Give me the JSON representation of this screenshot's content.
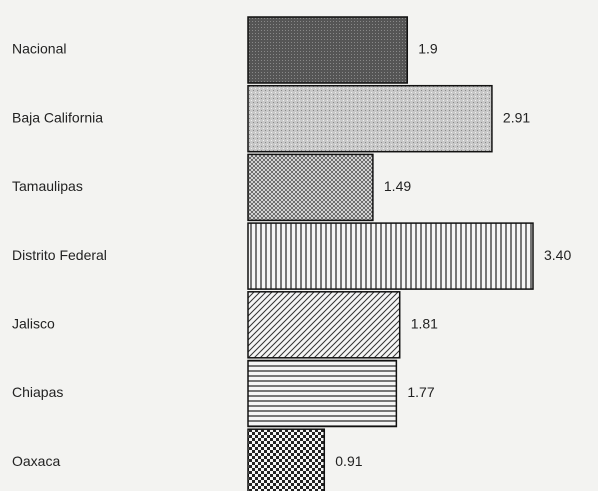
{
  "chart_data": {
    "type": "bar",
    "orientation": "horizontal",
    "categories": [
      "Nacional",
      "Baja California",
      "Tamaulipas",
      "Distrito Federal",
      "Jalisco",
      "Chiapas",
      "Oaxaca"
    ],
    "values": [
      1.9,
      2.91,
      1.49,
      3.4,
      1.81,
      1.77,
      0.91
    ],
    "value_labels": [
      "1.9",
      "2.91",
      "1.49",
      "3.40",
      "1.81",
      "1.77",
      "0.91"
    ]
  }
}
